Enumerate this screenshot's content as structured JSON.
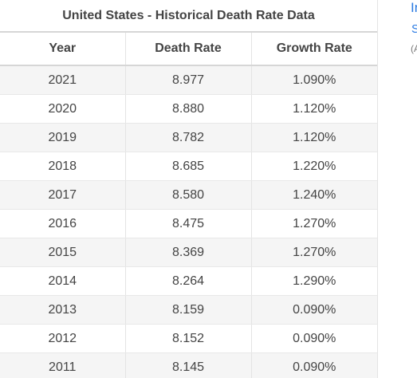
{
  "table": {
    "title": "United States - Historical Death Rate Data",
    "headers": [
      "Year",
      "Death Rate",
      "Growth Rate"
    ],
    "rows": [
      {
        "year": "2021",
        "rate": "8.977",
        "growth": "1.090%"
      },
      {
        "year": "2020",
        "rate": "8.880",
        "growth": "1.120%"
      },
      {
        "year": "2019",
        "rate": "8.782",
        "growth": "1.120%"
      },
      {
        "year": "2018",
        "rate": "8.685",
        "growth": "1.220%"
      },
      {
        "year": "2017",
        "rate": "8.580",
        "growth": "1.240%"
      },
      {
        "year": "2016",
        "rate": "8.475",
        "growth": "1.270%"
      },
      {
        "year": "2015",
        "rate": "8.369",
        "growth": "1.270%"
      },
      {
        "year": "2014",
        "rate": "8.264",
        "growth": "1.290%"
      },
      {
        "year": "2013",
        "rate": "8.159",
        "growth": "0.090%"
      },
      {
        "year": "2012",
        "rate": "8.152",
        "growth": "0.090%"
      },
      {
        "year": "2011",
        "rate": "8.145",
        "growth": "0.090%"
      }
    ]
  },
  "sidebar": {
    "link1": "In",
    "link2": "S",
    "note": "(A"
  },
  "colors": {
    "link": "#2a7ae2",
    "text": "#444444",
    "stripe": "#f5f5f5"
  }
}
